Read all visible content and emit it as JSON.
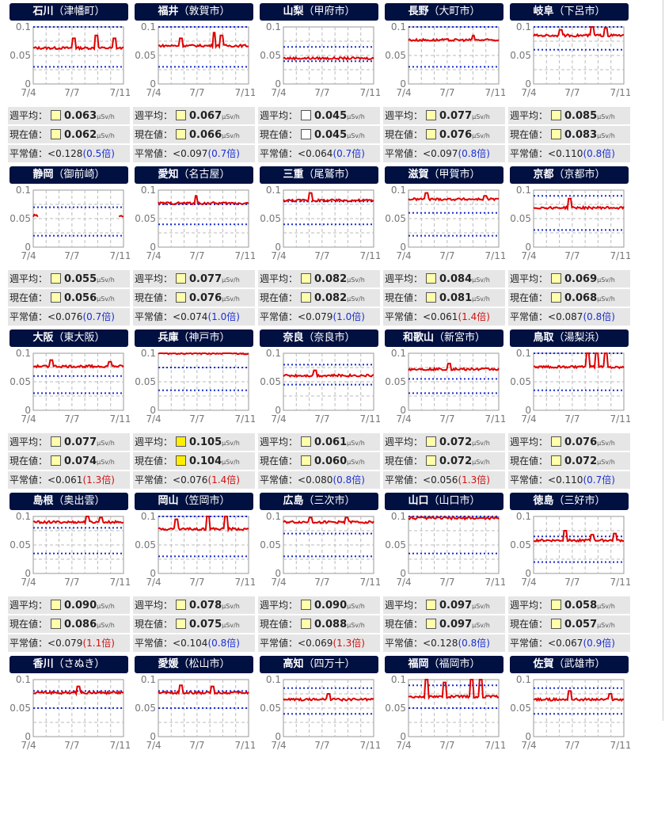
{
  "labels": {
    "week_avg": "週平均：",
    "current": "現在値：",
    "normal": "平常値：",
    "unit": "μSv/h"
  },
  "axis": {
    "y_ticks": [
      "0.1",
      "0.05",
      "0"
    ],
    "x_ticks": [
      "7/4",
      "7/7",
      "7/11"
    ]
  },
  "colors": {
    "title_bg": "#001040",
    "line": "#e00000",
    "ref": "#1a2fd0",
    "level_low": "#ffffff",
    "level_mid": "#ffffaa",
    "level_high": "#ffee00",
    "ratio_normal": "#1b2fd1",
    "ratio_high": "#d01010"
  },
  "stations": [
    {
      "pref": "石川",
      "city": "（津幡町）",
      "week": "0.063",
      "now": "0.062",
      "normal": "<0.128",
      "ratio": "(0.5倍)",
      "rhigh": false,
      "level": "mid",
      "refs": [
        0.1,
        0.03
      ],
      "base": 0.063,
      "spikes": [
        [
          0.45,
          0.08
        ],
        [
          0.7,
          0.085
        ],
        [
          0.9,
          0.08
        ]
      ]
    },
    {
      "pref": "福井",
      "city": "（敦賀市）",
      "week": "0.067",
      "now": "0.066",
      "normal": "<0.097",
      "ratio": "(0.7倍)",
      "rhigh": false,
      "level": "mid",
      "refs": [
        0.1,
        0.03
      ],
      "base": 0.067,
      "spikes": [
        [
          0.25,
          0.08
        ],
        [
          0.62,
          0.09
        ],
        [
          0.7,
          0.085
        ]
      ]
    },
    {
      "pref": "山梨",
      "city": "（甲府市）",
      "week": "0.045",
      "now": "0.045",
      "normal": "<0.064",
      "ratio": "(0.7倍)",
      "rhigh": false,
      "level": "low",
      "refs": [
        0.065,
        0.04
      ],
      "base": 0.045,
      "spikes": []
    },
    {
      "pref": "長野",
      "city": "（大町市）",
      "week": "0.077",
      "now": "0.076",
      "normal": "<0.097",
      "ratio": "(0.8倍)",
      "rhigh": false,
      "level": "mid",
      "refs": [
        0.1,
        0.03
      ],
      "base": 0.077,
      "spikes": [
        [
          0.72,
          0.085
        ]
      ]
    },
    {
      "pref": "岐阜",
      "city": "（下呂市）",
      "week": "0.085",
      "now": "0.083",
      "normal": "<0.110",
      "ratio": "(0.8倍)",
      "rhigh": false,
      "level": "mid",
      "refs": [
        0.1,
        0.06
      ],
      "base": 0.085,
      "spikes": [
        [
          0.3,
          0.095
        ],
        [
          0.65,
          0.1
        ],
        [
          0.8,
          0.098
        ]
      ]
    },
    {
      "pref": "静岡",
      "city": "（御前崎）",
      "week": "0.055",
      "now": "0.056",
      "normal": "<0.076",
      "ratio": "(0.7倍)",
      "rhigh": false,
      "level": "mid",
      "refs": [
        0.07,
        0.02
      ],
      "base": 0.055,
      "spikes": [],
      "gap": true
    },
    {
      "pref": "愛知",
      "city": "（名古屋）",
      "week": "0.077",
      "now": "0.076",
      "normal": "<0.074",
      "ratio": "(1.0倍)",
      "rhigh": false,
      "level": "mid",
      "refs": [
        0.075,
        0.04
      ],
      "base": 0.077,
      "spikes": [
        [
          0.42,
          0.09
        ]
      ]
    },
    {
      "pref": "三重",
      "city": "（尾鷲市）",
      "week": "0.082",
      "now": "0.082",
      "normal": "<0.079",
      "ratio": "(1.0倍)",
      "rhigh": false,
      "level": "mid",
      "refs": [
        0.08,
        0.04
      ],
      "base": 0.082,
      "spikes": [
        [
          0.3,
          0.095
        ]
      ]
    },
    {
      "pref": "滋賀",
      "city": "（甲賀市）",
      "week": "0.084",
      "now": "0.081",
      "normal": "<0.061",
      "ratio": "(1.4倍)",
      "rhigh": true,
      "level": "mid",
      "refs": [
        0.06,
        0.02
      ],
      "base": 0.084,
      "spikes": [
        [
          0.2,
          0.095
        ],
        [
          0.85,
          0.09
        ]
      ]
    },
    {
      "pref": "京都",
      "city": "（京都市）",
      "week": "0.069",
      "now": "0.068",
      "normal": "<0.087",
      "ratio": "(0.8倍)",
      "rhigh": false,
      "level": "mid",
      "refs": [
        0.09,
        0.03
      ],
      "base": 0.069,
      "spikes": [
        [
          0.4,
          0.085
        ]
      ]
    },
    {
      "pref": "大阪",
      "city": "（東大阪）",
      "week": "0.077",
      "now": "0.074",
      "normal": "<0.061",
      "ratio": "(1.3倍)",
      "rhigh": true,
      "level": "mid",
      "refs": [
        0.06,
        0.03
      ],
      "base": 0.077,
      "spikes": [
        [
          0.2,
          0.088
        ],
        [
          0.85,
          0.085
        ]
      ]
    },
    {
      "pref": "兵庫",
      "city": "（神戸市）",
      "week": "0.105",
      "now": "0.104",
      "normal": "<0.076",
      "ratio": "(1.4倍)",
      "rhigh": true,
      "level": "high",
      "refs": [
        0.075,
        0.035
      ],
      "base": 0.1,
      "spikes": []
    },
    {
      "pref": "奈良",
      "city": "（奈良市）",
      "week": "0.061",
      "now": "0.060",
      "normal": "<0.080",
      "ratio": "(0.8倍)",
      "rhigh": false,
      "level": "mid",
      "refs": [
        0.08,
        0.045
      ],
      "base": 0.061,
      "spikes": [
        [
          0.35,
          0.07
        ]
      ]
    },
    {
      "pref": "和歌山",
      "city": "（新宮市）",
      "week": "0.072",
      "now": "0.072",
      "normal": "<0.056",
      "ratio": "(1.3倍)",
      "rhigh": true,
      "level": "mid",
      "refs": [
        0.055,
        0.03
      ],
      "base": 0.072,
      "spikes": [
        [
          0.45,
          0.082
        ]
      ]
    },
    {
      "pref": "鳥取",
      "city": "（湯梨浜）",
      "week": "0.076",
      "now": "0.072",
      "normal": "<0.110",
      "ratio": "(0.7倍)",
      "rhigh": false,
      "level": "mid",
      "refs": [
        0.1,
        0.035
      ],
      "base": 0.076,
      "spikes": [
        [
          0.6,
          0.1
        ],
        [
          0.7,
          0.1
        ],
        [
          0.8,
          0.1
        ]
      ]
    },
    {
      "pref": "島根",
      "city": "（奥出雲）",
      "week": "0.090",
      "now": "0.086",
      "normal": "<0.079",
      "ratio": "(1.1倍)",
      "rhigh": true,
      "level": "mid",
      "refs": [
        0.08,
        0.035
      ],
      "base": 0.09,
      "spikes": [
        [
          0.6,
          0.1
        ],
        [
          0.75,
          0.098
        ]
      ]
    },
    {
      "pref": "岡山",
      "city": "（笠岡市）",
      "week": "0.078",
      "now": "0.075",
      "normal": "<0.104",
      "ratio": "(0.8倍)",
      "rhigh": false,
      "level": "mid",
      "refs": [
        0.1,
        0.03
      ],
      "base": 0.078,
      "spikes": [
        [
          0.2,
          0.095
        ],
        [
          0.55,
          0.1
        ],
        [
          0.75,
          0.1
        ]
      ]
    },
    {
      "pref": "広島",
      "city": "（三次市）",
      "week": "0.090",
      "now": "0.088",
      "normal": "<0.069",
      "ratio": "(1.3倍)",
      "rhigh": true,
      "level": "mid",
      "refs": [
        0.07,
        0.03
      ],
      "base": 0.09,
      "spikes": [
        [
          0.3,
          0.098
        ],
        [
          0.7,
          0.098
        ]
      ]
    },
    {
      "pref": "山口",
      "city": "（山口市）",
      "week": "0.097",
      "now": "0.097",
      "normal": "<0.128",
      "ratio": "(0.8倍)",
      "rhigh": false,
      "level": "mid",
      "refs": [
        0.1,
        0.035
      ],
      "base": 0.097,
      "spikes": []
    },
    {
      "pref": "徳島",
      "city": "（三好市）",
      "week": "0.058",
      "now": "0.057",
      "normal": "<0.067",
      "ratio": "(0.9倍)",
      "rhigh": false,
      "level": "mid",
      "refs": [
        0.065,
        0.02
      ],
      "base": 0.058,
      "spikes": [
        [
          0.35,
          0.075
        ],
        [
          0.65,
          0.068
        ],
        [
          0.9,
          0.07
        ]
      ]
    },
    {
      "pref": "香川",
      "city": "（さぬき）",
      "week": "",
      "now": "",
      "normal": "",
      "ratio": "",
      "rhigh": false,
      "level": "mid",
      "refs": [
        0.08,
        0.05
      ],
      "base": 0.077,
      "spikes": [
        [
          0.5,
          0.088
        ]
      ]
    },
    {
      "pref": "愛媛",
      "city": "（松山市）",
      "week": "",
      "now": "",
      "normal": "",
      "ratio": "",
      "rhigh": false,
      "level": "mid",
      "refs": [
        0.08,
        0.05
      ],
      "base": 0.077,
      "spikes": [
        [
          0.25,
          0.09
        ],
        [
          0.6,
          0.088
        ]
      ]
    },
    {
      "pref": "高知",
      "city": "（四万十）",
      "week": "",
      "now": "",
      "normal": "",
      "ratio": "",
      "rhigh": false,
      "level": "mid",
      "refs": [
        0.085,
        0.04
      ],
      "base": 0.065,
      "spikes": [
        [
          0.5,
          0.075
        ]
      ]
    },
    {
      "pref": "福岡",
      "city": "（福岡市）",
      "week": "",
      "now": "",
      "normal": "",
      "ratio": "",
      "rhigh": false,
      "level": "mid",
      "refs": [
        0.09,
        0.05
      ],
      "base": 0.07,
      "spikes": [
        [
          0.2,
          0.1
        ],
        [
          0.4,
          0.095
        ],
        [
          0.7,
          0.1
        ],
        [
          0.8,
          0.1
        ]
      ]
    },
    {
      "pref": "佐賀",
      "city": "（武雄市）",
      "week": "",
      "now": "",
      "normal": "",
      "ratio": "",
      "rhigh": false,
      "level": "mid",
      "refs": [
        0.085,
        0.04
      ],
      "base": 0.065,
      "spikes": [
        [
          0.4,
          0.08
        ],
        [
          0.85,
          0.075
        ]
      ]
    }
  ]
}
